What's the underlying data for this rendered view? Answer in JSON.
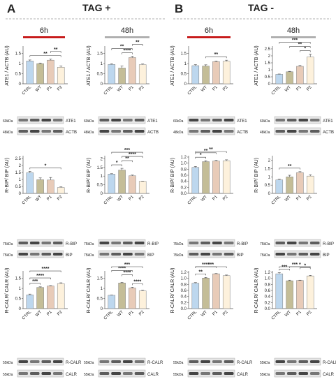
{
  "figure": {
    "panels": [
      {
        "letter": "A",
        "title": "TAG +"
      },
      {
        "letter": "B",
        "title": "TAG -"
      }
    ],
    "timepoints": [
      "6h",
      "48h",
      "6h",
      "48h"
    ],
    "colors": {
      "CTRL": "#bdd7ee",
      "WT": "#c4bd97",
      "P1": "#e8cbb8",
      "P2": "#fdf1dc",
      "bar_outline": "#7f7f7f",
      "time_6h": "#c00000",
      "time_48h": "#a6a6a6"
    },
    "ylabels": [
      "ATE1 / ACTB (AU)",
      "R-BIP/ BIP (AU)",
      "R-CALR/ CALR (AU)"
    ],
    "blots": [
      [
        {
          "size": "60kDa",
          "name": "ATE1"
        },
        {
          "size": "48kDa",
          "name": "ACTB"
        }
      ],
      [
        {
          "size": "75kDa",
          "name": "R-BIP"
        },
        {
          "size": "75kDa",
          "name": "BIP"
        }
      ],
      [
        {
          "size": "55kDa",
          "name": "R-CALR"
        },
        {
          "size": "55kDa",
          "name": "CALR"
        }
      ]
    ]
  },
  "chart_data": [
    {
      "type": "bar",
      "panel": "A",
      "time": "6h",
      "ylabel": "ATE1 / ACTB (AU)",
      "categories": [
        "CTRL",
        "WT",
        "P1",
        "P2"
      ],
      "values": [
        1.13,
        1.0,
        1.17,
        0.82
      ],
      "errors": [
        0.05,
        0.03,
        0.05,
        0.06
      ],
      "ylim": [
        0,
        1.8
      ],
      "ticks": [
        0,
        0.5,
        1,
        1.5
      ],
      "sig": [
        {
          "from": 0,
          "to": 3,
          "label": "**"
        },
        {
          "from": 2,
          "to": 3,
          "label": "**"
        }
      ]
    },
    {
      "type": "bar",
      "panel": "A",
      "time": "48h",
      "ylabel": "ATE1 / ACTB (AU)",
      "categories": [
        "CTRL",
        "WT",
        "P1",
        "P2"
      ],
      "values": [
        0.96,
        0.78,
        1.3,
        0.95
      ],
      "errors": [
        0.03,
        0.1,
        0.06,
        0.03
      ],
      "ylim": [
        0,
        1.8
      ],
      "ticks": [
        0,
        0.5,
        1,
        1.5
      ],
      "sig": [
        {
          "from": 1,
          "to": 2,
          "label": "****"
        },
        {
          "from": 0,
          "to": 2,
          "label": "**"
        },
        {
          "from": 2,
          "to": 3,
          "label": "**"
        }
      ]
    },
    {
      "type": "bar",
      "panel": "B",
      "time": "6h",
      "ylabel": "ATE1 / ACTB (AU)",
      "categories": [
        "CTRL",
        "WT",
        "P1",
        "P2"
      ],
      "values": [
        0.9,
        0.88,
        1.1,
        1.12
      ],
      "errors": [
        0.05,
        0.06,
        0.03,
        0.05
      ],
      "ylim": [
        0,
        1.8
      ],
      "ticks": [
        0,
        0.5,
        1,
        1.5
      ],
      "sig": [
        {
          "from": 1,
          "to": 3,
          "label": "**"
        }
      ]
    },
    {
      "type": "bar",
      "panel": "B",
      "time": "48h",
      "ylabel": "ATE1 / ACTB (AU)",
      "categories": [
        "CTRL",
        "WT",
        "P1",
        "P2"
      ],
      "values": [
        0.68,
        0.86,
        1.25,
        1.92
      ],
      "errors": [
        0.02,
        0.03,
        0.06,
        0.2
      ],
      "ylim": [
        0,
        2.6
      ],
      "ticks": [
        0,
        0.5,
        1,
        1.5,
        2,
        2.5
      ],
      "sig": [
        {
          "from": 2,
          "to": 3,
          "label": "*"
        },
        {
          "from": 1,
          "to": 3,
          "label": "**"
        },
        {
          "from": 0,
          "to": 3,
          "label": "***"
        }
      ]
    },
    {
      "type": "bar",
      "panel": "A",
      "time": "6h",
      "ylabel": "R-BIP/ BIP (AU)",
      "categories": [
        "CTRL",
        "WT",
        "P1",
        "P2"
      ],
      "values": [
        1.48,
        0.98,
        0.96,
        0.42
      ],
      "errors": [
        0.1,
        0.13,
        0.18,
        0.05
      ],
      "ylim": [
        0,
        2.6
      ],
      "ticks": [
        0,
        0.5,
        1,
        1.5,
        2,
        2.5
      ],
      "sig": [
        {
          "from": 0,
          "to": 3,
          "label": "*"
        }
      ]
    },
    {
      "type": "bar",
      "panel": "A",
      "time": "48h",
      "ylabel": "R-BIP/ BIP (AU)",
      "categories": [
        "CTRL",
        "WT",
        "P1",
        "P2"
      ],
      "values": [
        1.12,
        1.35,
        1.02,
        0.7
      ],
      "errors": [
        0.02,
        0.1,
        0.04,
        0.01
      ],
      "ylim": [
        0,
        2.1
      ],
      "ticks": [
        0,
        0.5,
        1,
        1.5,
        2
      ],
      "sig": [
        {
          "from": 0,
          "to": 1,
          "label": "*"
        },
        {
          "from": 1,
          "to": 2,
          "label": "**"
        },
        {
          "from": 1,
          "to": 3,
          "label": "****"
        },
        {
          "from": 0,
          "to": 3,
          "label": "***"
        }
      ]
    },
    {
      "type": "bar",
      "panel": "B",
      "time": "6h",
      "ylabel": "R-BIP/ BIP (AU)",
      "categories": [
        "CTRL",
        "WT",
        "P1",
        "P2"
      ],
      "values": [
        0.86,
        1.05,
        1.07,
        1.08
      ],
      "errors": [
        0.03,
        0.03,
        0.02,
        0.03
      ],
      "ylim": [
        0,
        1.2
      ],
      "ticks": [
        0,
        0.2,
        0.4,
        0.6,
        0.8,
        1.0,
        1.2
      ],
      "sig": [
        {
          "from": 0,
          "to": 1,
          "label": "*"
        },
        {
          "from": 0,
          "to": 2,
          "label": "**"
        },
        {
          "from": 0,
          "to": 3,
          "label": "**"
        }
      ]
    },
    {
      "type": "bar",
      "panel": "B",
      "time": "48h",
      "ylabel": "R-BIP/ BIP (AU)",
      "categories": [
        "CTRL",
        "WT",
        "P1",
        "P2"
      ],
      "values": [
        0.82,
        1.0,
        1.26,
        1.05
      ],
      "errors": [
        0.04,
        0.1,
        0.06,
        0.08
      ],
      "ylim": [
        0,
        2.2
      ],
      "ticks": [
        0,
        0.5,
        1,
        1.5,
        2
      ],
      "sig": [
        {
          "from": 0,
          "to": 2,
          "label": "**"
        }
      ]
    },
    {
      "type": "bar",
      "panel": "A",
      "time": "6h",
      "ylabel": "R-CALR/ CALR (AU)",
      "categories": [
        "CTRL",
        "WT",
        "P1",
        "P2"
      ],
      "values": [
        0.68,
        1.05,
        1.12,
        1.24
      ],
      "errors": [
        0.04,
        0.03,
        0.02,
        0.04
      ],
      "ylim": [
        0,
        1.8
      ],
      "ticks": [
        0,
        0.5,
        1,
        1.5
      ],
      "sig": [
        {
          "from": 0,
          "to": 1,
          "label": "***"
        },
        {
          "from": 0,
          "to": 2,
          "label": "****"
        },
        {
          "from": 0,
          "to": 3,
          "label": "****"
        }
      ]
    },
    {
      "type": "bar",
      "panel": "A",
      "time": "48h",
      "ylabel": "R-CALR/ CALR (AU)",
      "categories": [
        "CTRL",
        "WT",
        "P1",
        "P2"
      ],
      "values": [
        0.66,
        1.27,
        1.02,
        0.88
      ],
      "errors": [
        0.01,
        0.03,
        0.04,
        0.03
      ],
      "ylim": [
        0,
        1.8
      ],
      "ticks": [
        0,
        0.5,
        1,
        1.5
      ],
      "sig": [
        {
          "from": 2,
          "to": 3,
          "label": "****"
        },
        {
          "from": 1,
          "to": 2,
          "label": "****"
        },
        {
          "from": 0,
          "to": 2,
          "label": "****"
        },
        {
          "from": 0,
          "to": 3,
          "label": "***"
        }
      ]
    },
    {
      "type": "bar",
      "panel": "B",
      "time": "6h",
      "ylabel": "R-CALR/ CALR (AU)",
      "categories": [
        "CTRL",
        "WT",
        "P1",
        "P2"
      ],
      "values": [
        0.84,
        1.01,
        1.15,
        1.09
      ],
      "errors": [
        0.02,
        0.02,
        0.01,
        0.02
      ],
      "ylim": [
        0,
        1.2
      ],
      "ticks": [
        0,
        0.2,
        0.4,
        0.6,
        0.8,
        1.0,
        1.2
      ],
      "sig": [
        {
          "from": 0,
          "to": 1,
          "label": "**"
        },
        {
          "from": 0,
          "to": 2,
          "label": "****"
        },
        {
          "from": 0,
          "to": 3,
          "label": "***"
        }
      ]
    },
    {
      "type": "bar",
      "panel": "B",
      "time": "48h",
      "ylabel": "R-CALR/ CALR (AU)",
      "categories": [
        "CTRL",
        "WT",
        "P1",
        "P2"
      ],
      "values": [
        1.15,
        0.92,
        0.93,
        1.08
      ],
      "errors": [
        0.04,
        0.02,
        0.01,
        0.02
      ],
      "ylim": [
        0,
        1.2
      ],
      "ticks": [
        0,
        0.2,
        0.4,
        0.6,
        0.8,
        1.0,
        1.2
      ],
      "sig": [
        {
          "from": 0,
          "to": 1,
          "label": "***"
        },
        {
          "from": 2,
          "to": 3,
          "label": "*"
        },
        {
          "from": 1,
          "to": 3,
          "label": "*"
        },
        {
          "from": 0,
          "to": 3,
          "label": "***"
        }
      ]
    }
  ]
}
